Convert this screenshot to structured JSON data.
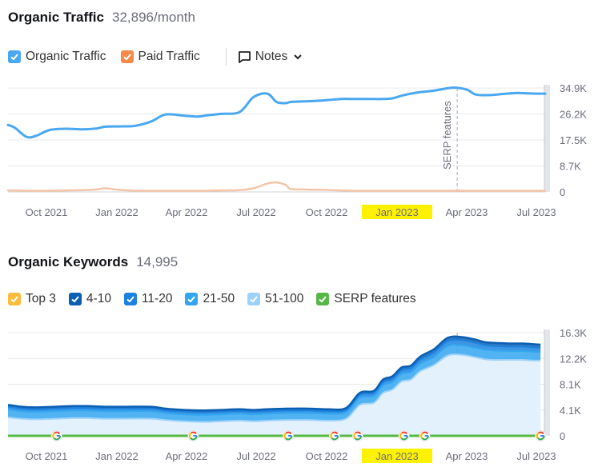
{
  "traffic": {
    "title": "Organic Traffic",
    "subtitle": "32,896/month",
    "legend": [
      {
        "label": "Organic Traffic",
        "color": "#4aa8f0"
      },
      {
        "label": "Paid Traffic",
        "color": "#f5894a"
      }
    ],
    "notes_label": "Notes",
    "annotation": "SERP features"
  },
  "keywords": {
    "title": "Organic Keywords",
    "subtitle": "14,995",
    "legend": [
      {
        "label": "Top 3",
        "color": "#f7bd3b"
      },
      {
        "label": "4-10",
        "color": "#0b5fb3"
      },
      {
        "label": "11-20",
        "color": "#1b82df"
      },
      {
        "label": "21-50",
        "color": "#33a6f0"
      },
      {
        "label": "51-100",
        "color": "#9cd2fa"
      },
      {
        "label": "SERP features",
        "color": "#56b845"
      }
    ]
  },
  "chart_data": [
    {
      "type": "line",
      "title": "Organic Traffic",
      "x_ticks": [
        "Oct 2021",
        "Jan 2022",
        "Apr 2022",
        "Jul 2022",
        "Oct 2022",
        "Jan 2023",
        "Apr 2023",
        "Jul 2023"
      ],
      "highlighted_tick": "Jan 2023",
      "y_ticks": [
        "0",
        "8.7K",
        "17.5K",
        "26.2K",
        "34.9K"
      ],
      "ylim": [
        0,
        34900
      ],
      "x": [
        0,
        0.3,
        0.8,
        1.2,
        1.8,
        2.5,
        3.2,
        3.8,
        4.2,
        4.8,
        5.5,
        6.2,
        6.8,
        7.6,
        8.2,
        8.6,
        9.2,
        10.0,
        10.6,
        11.2,
        11.6,
        12.0,
        12.2,
        12.8,
        13.6,
        14.4,
        15.0,
        15.8,
        16.2,
        16.6,
        17.0,
        17.4,
        17.8,
        18.4,
        19.2,
        19.8,
        20.2,
        20.8,
        21.4,
        22.0,
        22.4,
        22.8,
        23.2
      ],
      "series": [
        {
          "name": "Organic Traffic",
          "color": "#4aa8f0",
          "values": [
            22500,
            21500,
            18500,
            18800,
            20800,
            21200,
            21000,
            21300,
            21900,
            22000,
            22200,
            23700,
            26000,
            25600,
            25300,
            25700,
            26200,
            26800,
            31800,
            33000,
            30200,
            29800,
            30200,
            30400,
            30700,
            31200,
            31200,
            31200,
            31200,
            31400,
            32300,
            33000,
            33500,
            34000,
            35000,
            34400,
            32700,
            32500,
            32900,
            33200,
            33100,
            33000,
            33000
          ]
        },
        {
          "name": "Paid Traffic",
          "color": "#f5c5a8",
          "values": [
            500,
            500,
            400,
            400,
            400,
            500,
            600,
            800,
            1200,
            700,
            400,
            400,
            400,
            400,
            400,
            400,
            500,
            600,
            1200,
            2800,
            3200,
            2300,
            1000,
            800,
            700,
            500,
            400,
            400,
            400,
            400,
            400,
            400,
            400,
            400,
            400,
            400,
            400,
            400,
            400,
            400,
            400,
            400,
            400
          ]
        }
      ]
    },
    {
      "type": "area",
      "title": "Organic Keywords",
      "x_ticks": [
        "Oct 2021",
        "Jan 2022",
        "Apr 2022",
        "Jul 2022",
        "Oct 2022",
        "Jan 2023",
        "Apr 2023",
        "Jul 2023"
      ],
      "highlighted_tick": "Jan 2023",
      "y_ticks": [
        "0",
        "4.1K",
        "8.1K",
        "12.2K",
        "16.3K"
      ],
      "ylim": [
        0,
        16300
      ],
      "x": [
        0,
        0.6,
        1.2,
        2.0,
        2.8,
        3.4,
        4.2,
        5.0,
        6.2,
        6.8,
        7.6,
        8.4,
        9.2,
        10.0,
        10.6,
        11.2,
        12.0,
        13.0,
        13.8,
        14.6,
        15.2,
        15.8,
        16.2,
        16.6,
        17.0,
        17.4,
        17.8,
        18.4,
        19.0,
        19.6,
        20.2,
        20.6,
        21.0,
        21.6,
        22.2,
        22.6,
        23.0
      ],
      "series": [
        {
          "name": "51-100",
          "color": "#9cd2fa",
          "values": [
            2900,
            2700,
            2600,
            2700,
            2800,
            2800,
            2700,
            2700,
            2700,
            2500,
            2300,
            2200,
            2300,
            2400,
            2300,
            2400,
            2500,
            2500,
            2400,
            2700,
            4900,
            5200,
            6800,
            7300,
            8600,
            8900,
            10200,
            11200,
            12700,
            12800,
            12400,
            12100,
            12000,
            12000,
            12000,
            11900,
            11900
          ]
        },
        {
          "name": "21-50",
          "color": "#33a6f0",
          "values": [
            4200,
            3900,
            3800,
            3900,
            4000,
            4000,
            3900,
            3900,
            3900,
            3600,
            3400,
            3300,
            3400,
            3500,
            3400,
            3500,
            3600,
            3600,
            3500,
            3700,
            6000,
            6300,
            8000,
            8500,
            9800,
            10100,
            11400,
            12500,
            14200,
            14300,
            13900,
            13600,
            13500,
            13400,
            13400,
            13300,
            13200
          ]
        },
        {
          "name": "11-20",
          "color": "#1b82df",
          "values": [
            4600,
            4300,
            4200,
            4300,
            4400,
            4400,
            4300,
            4300,
            4300,
            4000,
            3800,
            3700,
            3800,
            3900,
            3800,
            3900,
            4000,
            4000,
            3900,
            4100,
            6500,
            6800,
            8500,
            9000,
            10400,
            10700,
            12000,
            13200,
            15000,
            15100,
            14700,
            14300,
            14200,
            14100,
            14100,
            14000,
            13900
          ]
        },
        {
          "name": "4-10",
          "color": "#0b5fb3",
          "values": [
            4900,
            4600,
            4500,
            4600,
            4700,
            4700,
            4600,
            4600,
            4600,
            4300,
            4100,
            4000,
            4100,
            4200,
            4100,
            4200,
            4300,
            4300,
            4200,
            4400,
            6800,
            7100,
            8900,
            9400,
            10800,
            11100,
            12500,
            13700,
            15500,
            15600,
            15200,
            14800,
            14700,
            14600,
            14600,
            14500,
            14400
          ]
        }
      ],
      "serp_features_x": [
        2.1,
        8.0,
        12.1,
        14.1,
        15.1,
        17.1,
        18.0,
        23.0
      ],
      "serp_marker_label": "G"
    }
  ]
}
